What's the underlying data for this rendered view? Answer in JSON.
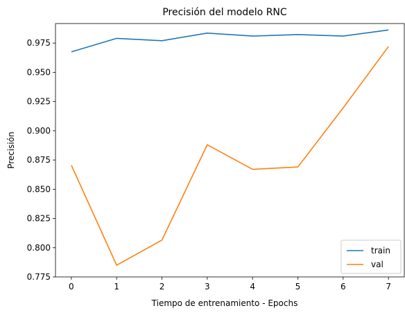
{
  "chart_data": {
    "type": "line",
    "title": "Precisión del modelo RNC",
    "xlabel": "Tiempo de entrenamiento - Epochs",
    "ylabel": "Precisión",
    "x": [
      0,
      1,
      2,
      3,
      4,
      5,
      6,
      7
    ],
    "xticks": [
      "0",
      "1",
      "2",
      "3",
      "4",
      "5",
      "6",
      "7"
    ],
    "yticks": [
      "0.775",
      "0.800",
      "0.825",
      "0.850",
      "0.875",
      "0.900",
      "0.925",
      "0.950",
      "0.975"
    ],
    "ytick_values": [
      0.775,
      0.8,
      0.825,
      0.85,
      0.875,
      0.9,
      0.925,
      0.95,
      0.975
    ],
    "xlim": [
      -0.35,
      7.35
    ],
    "ylim": [
      0.775,
      0.9917
    ],
    "grid": false,
    "legend_position": "lower-right",
    "series": [
      {
        "name": "train",
        "color": "#1f77b4",
        "values": [
          0.9675,
          0.979,
          0.977,
          0.9835,
          0.981,
          0.9823,
          0.981,
          0.9862
        ]
      },
      {
        "name": "val",
        "color": "#ff7f0e",
        "values": [
          0.8705,
          0.785,
          0.8065,
          0.888,
          0.867,
          0.869,
          0.9195,
          0.972
        ]
      }
    ]
  }
}
